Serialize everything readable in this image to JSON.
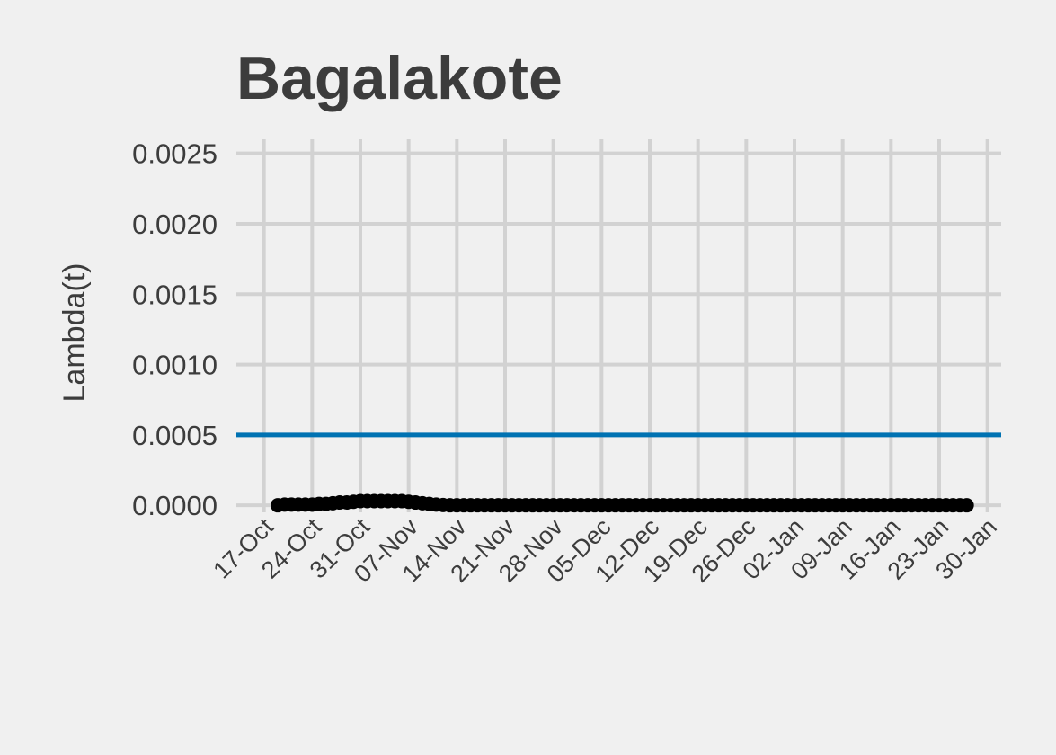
{
  "chart_data": {
    "type": "line",
    "title": "Bagalakote",
    "ylabel": "Lambda(t)",
    "xlabel": "",
    "ylim": [
      -5e-05,
      0.0026
    ],
    "xlim": [
      "2020-10-13",
      "2021-02-01"
    ],
    "grid": true,
    "y_ticks": [
      {
        "value": 0.0,
        "label": "0.0000"
      },
      {
        "value": 0.0005,
        "label": "0.0005"
      },
      {
        "value": 0.001,
        "label": "0.0010"
      },
      {
        "value": 0.0015,
        "label": "0.0015"
      },
      {
        "value": 0.002,
        "label": "0.0020"
      },
      {
        "value": 0.0025,
        "label": "0.0025"
      }
    ],
    "x_ticks": [
      {
        "date": "2020-10-17",
        "label": "17-Oct"
      },
      {
        "date": "2020-10-24",
        "label": "24-Oct"
      },
      {
        "date": "2020-10-31",
        "label": "31-Oct"
      },
      {
        "date": "2020-11-07",
        "label": "07-Nov"
      },
      {
        "date": "2020-11-14",
        "label": "14-Nov"
      },
      {
        "date": "2020-11-21",
        "label": "21-Nov"
      },
      {
        "date": "2020-11-28",
        "label": "28-Nov"
      },
      {
        "date": "2020-12-05",
        "label": "05-Dec"
      },
      {
        "date": "2020-12-12",
        "label": "12-Dec"
      },
      {
        "date": "2020-12-19",
        "label": "19-Dec"
      },
      {
        "date": "2020-12-26",
        "label": "26-Dec"
      },
      {
        "date": "2021-01-02",
        "label": "02-Jan"
      },
      {
        "date": "2021-01-09",
        "label": "09-Jan"
      },
      {
        "date": "2021-01-16",
        "label": "16-Jan"
      },
      {
        "date": "2021-01-23",
        "label": "23-Jan"
      },
      {
        "date": "2021-01-30",
        "label": "30-Jan"
      }
    ],
    "reference_line": {
      "value": 0.0005,
      "color": "#0072b2"
    },
    "line_color": "#000000",
    "series": [
      {
        "start_date": "2020-10-19",
        "end_date": "2021-01-28",
        "values": [
          0.0,
          5e-06,
          5e-06,
          5e-06,
          5e-06,
          5e-06,
          1e-05,
          1e-05,
          1.5e-05,
          2e-05,
          2e-05,
          2.5e-05,
          3e-05,
          3e-05,
          3e-05,
          3e-05,
          3e-05,
          3e-05,
          3e-05,
          2.5e-05,
          2e-05,
          1.5e-05,
          1e-05,
          5e-06,
          2e-06,
          0.0,
          0.0,
          0.0,
          0.0,
          0.0,
          0.0,
          0.0,
          0.0,
          0.0,
          0.0,
          0.0,
          0.0,
          0.0,
          0.0,
          0.0,
          0.0,
          0.0,
          0.0,
          0.0,
          0.0,
          0.0,
          0.0,
          0.0,
          0.0,
          0.0,
          0.0,
          0.0,
          0.0,
          0.0,
          0.0,
          0.0,
          0.0,
          0.0,
          0.0,
          0.0,
          0.0,
          0.0,
          0.0,
          0.0,
          0.0,
          0.0,
          0.0,
          0.0,
          0.0,
          0.0,
          0.0,
          0.0,
          0.0,
          0.0,
          0.0,
          0.0,
          0.0,
          0.0,
          0.0,
          0.0,
          0.0,
          0.0,
          0.0,
          0.0,
          0.0,
          0.0,
          0.0,
          0.0,
          0.0,
          0.0,
          0.0,
          0.0,
          0.0,
          0.0,
          0.0,
          0.0,
          0.0,
          0.0,
          0.0,
          0.0,
          0.0
        ]
      }
    ]
  }
}
